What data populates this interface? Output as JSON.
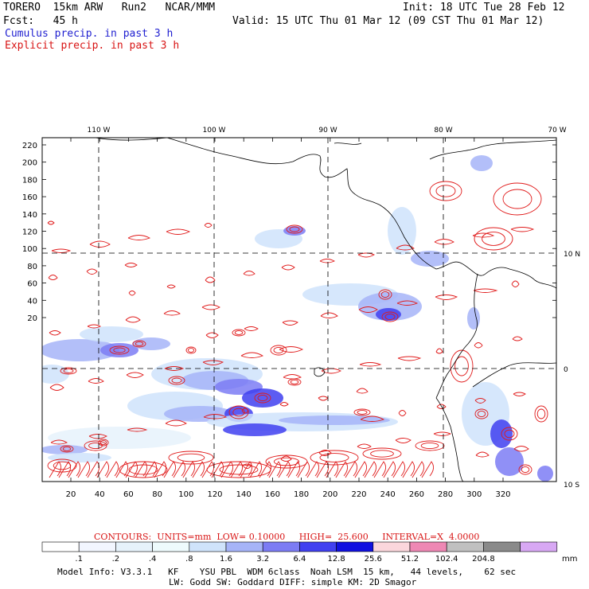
{
  "header": {
    "model": "TORERO  15km ARW   Run2   NCAR/MMM",
    "init": "Init: 18 UTC Tue 28 Feb 12",
    "fcst": "Fcst:   45 h",
    "valid": "Valid: 15 UTC Thu 01 Mar 12 (09 CST Thu 01 Mar 12)",
    "field1": "Cumulus precip. in past 3 h",
    "field2": "Explicit precip. in past 3 h"
  },
  "colors": {
    "cumulus_text": "#1f1fd0",
    "explicit_text": "#d81414",
    "contour": "#e01a1a",
    "grid": "#000000"
  },
  "map": {
    "lon_labels": [
      "110 W",
      "100 W",
      "90 W",
      "80 W",
      "70 W"
    ],
    "lat_labels": [
      "10 N",
      "0",
      "10 S"
    ],
    "y_ticks": [
      "220",
      "200",
      "180",
      "160",
      "140",
      "120",
      "100",
      "80",
      "60",
      "40",
      "20"
    ],
    "x_ticks": [
      "20",
      "40",
      "60",
      "80",
      "100",
      "120",
      "140",
      "160",
      "180",
      "200",
      "220",
      "240",
      "260",
      "280",
      "300",
      "320"
    ]
  },
  "contours": {
    "label": "CONTOURS:  UNITS=mm  LOW= 0.10000     HIGH=  25.600     INTERVAL=X  4.0000"
  },
  "colorbar": {
    "bins": [
      {
        "label": ".1",
        "color": "#ffffff"
      },
      {
        "label": ".2",
        "color": "#f2f6ff"
      },
      {
        "label": ".4",
        "color": "#e6f2fb"
      },
      {
        "label": ".8",
        "color": "#eefbfd"
      },
      {
        "label": "1.6",
        "color": "#cfe3fb"
      },
      {
        "label": "3.2",
        "color": "#a6b4f8"
      },
      {
        "label": "6.4",
        "color": "#7c7cf4"
      },
      {
        "label": "12.8",
        "color": "#4040f0"
      },
      {
        "label": "25.6",
        "color": "#1010e0"
      },
      {
        "label": "51.2",
        "color": "#fbd6dc"
      },
      {
        "label": "102.4",
        "color": "#ee88b4"
      },
      {
        "label": "204.8",
        "color": "#c0c0c0"
      },
      {
        "label": "",
        "color": "#8a8a8a"
      },
      {
        "label": "",
        "color": "#d8a8f4"
      }
    ],
    "unit": "mm"
  },
  "footer": {
    "line1": "Model Info: V3.3.1   KF    YSU PBL  WDM 6class  Noah LSM  15 km,   44 levels,    62 sec",
    "line2": "LW: Godd SW: Goddard DIFF: simple KM: 2D Smagor"
  }
}
